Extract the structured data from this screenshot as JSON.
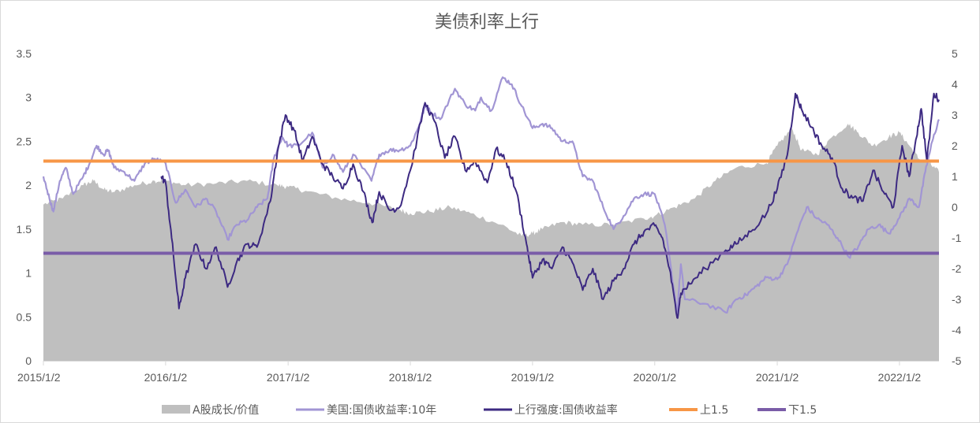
{
  "chart_data": {
    "type": "line",
    "title": "美债利率上行",
    "y_left": {
      "min": 0,
      "max": 3.5,
      "ticks": [
        "0",
        "0.5",
        "1",
        "1.5",
        "2",
        "2.5",
        "3",
        "3.5"
      ]
    },
    "y_right": {
      "min": -5,
      "max": 5,
      "ticks": [
        "-5",
        "-4",
        "-3",
        "-2",
        "-1",
        "0",
        "1",
        "2",
        "3",
        "4",
        "5"
      ]
    },
    "x_axis": {
      "start": "2015/1/2",
      "end": "2022/4/30",
      "ticks": [
        "2015/1/2",
        "2016/1/2",
        "2017/1/2",
        "2018/1/2",
        "2019/1/2",
        "2020/1/2",
        "2021/1/2",
        "2022/1/2"
      ]
    },
    "legend": {
      "position": "bottom",
      "items": [
        "A股成长/价值",
        "美国:国债收益率:10年",
        "上行强度:国债收益率",
        "上1.5",
        "下1.5"
      ]
    },
    "colors": {
      "area": "#bfbfbf",
      "us10y": "#a195d4",
      "strength": "#3d2a82",
      "upper": "#f79646",
      "lower": "#7a5ca8"
    },
    "series": [
      {
        "name": "A股成长/价值",
        "axis": "left",
        "type": "area",
        "points": [
          [
            "2015/1/2",
            1.78
          ],
          [
            "2015/3/1",
            1.85
          ],
          [
            "2015/5/1",
            2.0
          ],
          [
            "2015/6/1",
            2.05
          ],
          [
            "2015/7/1",
            1.95
          ],
          [
            "2015/8/1",
            1.92
          ],
          [
            "2015/10/1",
            2.0
          ],
          [
            "2015/12/1",
            2.05
          ],
          [
            "2016/1/2",
            2.05
          ],
          [
            "2016/3/1",
            2.0
          ],
          [
            "2016/6/1",
            2.02
          ],
          [
            "2016/9/1",
            2.05
          ],
          [
            "2016/12/1",
            2.0
          ],
          [
            "2017/1/2",
            1.98
          ],
          [
            "2017/3/1",
            1.93
          ],
          [
            "2017/6/1",
            1.85
          ],
          [
            "2017/9/1",
            1.8
          ],
          [
            "2017/12/1",
            1.72
          ],
          [
            "2018/1/2",
            1.68
          ],
          [
            "2018/3/1",
            1.7
          ],
          [
            "2018/5/1",
            1.75
          ],
          [
            "2018/7/1",
            1.68
          ],
          [
            "2018/10/1",
            1.55
          ],
          [
            "2018/12/1",
            1.42
          ],
          [
            "2019/1/2",
            1.45
          ],
          [
            "2019/2/1",
            1.5
          ],
          [
            "2019/4/1",
            1.58
          ],
          [
            "2019/6/1",
            1.55
          ],
          [
            "2019/9/1",
            1.55
          ],
          [
            "2019/12/1",
            1.62
          ],
          [
            "2020/1/2",
            1.65
          ],
          [
            "2020/3/1",
            1.75
          ],
          [
            "2020/5/1",
            1.85
          ],
          [
            "2020/7/1",
            2.05
          ],
          [
            "2020/9/1",
            2.2
          ],
          [
            "2020/12/1",
            2.25
          ],
          [
            "2021/1/2",
            2.45
          ],
          [
            "2021/2/15",
            2.65
          ],
          [
            "2021/3/15",
            2.4
          ],
          [
            "2021/5/1",
            2.35
          ],
          [
            "2021/6/1",
            2.5
          ],
          [
            "2021/8/1",
            2.7
          ],
          [
            "2021/9/1",
            2.6
          ],
          [
            "2021/10/15",
            2.45
          ],
          [
            "2021/12/1",
            2.55
          ],
          [
            "2022/1/2",
            2.6
          ],
          [
            "2022/2/1",
            2.45
          ],
          [
            "2022/3/1",
            2.3
          ],
          [
            "2022/4/1",
            2.25
          ],
          [
            "2022/4/30",
            2.15
          ]
        ]
      },
      {
        "name": "美国:国债收益率:10年",
        "axis": "left",
        "type": "line",
        "points": [
          [
            "2015/1/2",
            2.1
          ],
          [
            "2015/1/20",
            1.85
          ],
          [
            "2015/2/1",
            1.7
          ],
          [
            "2015/2/20",
            2.05
          ],
          [
            "2015/3/10",
            2.2
          ],
          [
            "2015/4/1",
            1.9
          ],
          [
            "2015/5/1",
            2.1
          ],
          [
            "2015/5/20",
            2.25
          ],
          [
            "2015/6/10",
            2.45
          ],
          [
            "2015/7/1",
            2.35
          ],
          [
            "2015/7/15",
            2.4
          ],
          [
            "2015/8/1",
            2.2
          ],
          [
            "2015/9/1",
            2.15
          ],
          [
            "2015/10/1",
            2.05
          ],
          [
            "2015/11/1",
            2.25
          ],
          [
            "2015/12/1",
            2.3
          ],
          [
            "2016/1/2",
            2.25
          ],
          [
            "2016/2/1",
            1.8
          ],
          [
            "2016/3/1",
            1.95
          ],
          [
            "2016/4/1",
            1.75
          ],
          [
            "2016/5/1",
            1.85
          ],
          [
            "2016/6/1",
            1.7
          ],
          [
            "2016/7/5",
            1.38
          ],
          [
            "2016/8/1",
            1.55
          ],
          [
            "2016/9/1",
            1.6
          ],
          [
            "2016/10/1",
            1.75
          ],
          [
            "2016/11/1",
            1.85
          ],
          [
            "2016/11/20",
            2.3
          ],
          [
            "2016/12/15",
            2.55
          ],
          [
            "2017/1/2",
            2.45
          ],
          [
            "2017/2/1",
            2.45
          ],
          [
            "2017/3/15",
            2.6
          ],
          [
            "2017/4/15",
            2.2
          ],
          [
            "2017/5/15",
            2.35
          ],
          [
            "2017/6/15",
            2.15
          ],
          [
            "2017/7/15",
            2.35
          ],
          [
            "2017/9/8",
            2.05
          ],
          [
            "2017/10/1",
            2.35
          ],
          [
            "2017/11/1",
            2.4
          ],
          [
            "2017/12/1",
            2.4
          ],
          [
            "2018/1/2",
            2.45
          ],
          [
            "2018/1/25",
            2.65
          ],
          [
            "2018/2/15",
            2.9
          ],
          [
            "2018/3/1",
            2.85
          ],
          [
            "2018/4/1",
            2.75
          ],
          [
            "2018/5/15",
            3.1
          ],
          [
            "2018/6/15",
            2.92
          ],
          [
            "2018/7/15",
            2.85
          ],
          [
            "2018/8/1",
            3.0
          ],
          [
            "2018/9/1",
            2.85
          ],
          [
            "2018/10/5",
            3.23
          ],
          [
            "2018/11/1",
            3.15
          ],
          [
            "2018/12/1",
            2.9
          ],
          [
            "2019/1/2",
            2.65
          ],
          [
            "2019/2/1",
            2.7
          ],
          [
            "2019/3/1",
            2.65
          ],
          [
            "2019/4/1",
            2.5
          ],
          [
            "2019/5/1",
            2.5
          ],
          [
            "2019/6/1",
            2.1
          ],
          [
            "2019/7/1",
            2.05
          ],
          [
            "2019/8/1",
            1.75
          ],
          [
            "2019/9/1",
            1.5
          ],
          [
            "2019/10/1",
            1.65
          ],
          [
            "2019/11/1",
            1.85
          ],
          [
            "2019/12/1",
            1.9
          ],
          [
            "2020/1/2",
            1.9
          ],
          [
            "2020/2/1",
            1.55
          ],
          [
            "2020/3/9",
            0.55
          ],
          [
            "2020/3/20",
            1.1
          ],
          [
            "2020/4/1",
            0.7
          ],
          [
            "2020/6/1",
            0.65
          ],
          [
            "2020/8/1",
            0.55
          ],
          [
            "2020/9/1",
            0.7
          ],
          [
            "2020/10/1",
            0.75
          ],
          [
            "2020/11/1",
            0.85
          ],
          [
            "2020/12/1",
            0.95
          ],
          [
            "2021/1/2",
            0.93
          ],
          [
            "2021/2/1",
            1.1
          ],
          [
            "2021/3/1",
            1.45
          ],
          [
            "2021/3/31",
            1.75
          ],
          [
            "2021/5/1",
            1.62
          ],
          [
            "2021/6/1",
            1.55
          ],
          [
            "2021/7/1",
            1.4
          ],
          [
            "2021/8/4",
            1.18
          ],
          [
            "2021/9/1",
            1.3
          ],
          [
            "2021/10/1",
            1.5
          ],
          [
            "2021/11/1",
            1.55
          ],
          [
            "2021/12/1",
            1.45
          ],
          [
            "2022/1/2",
            1.63
          ],
          [
            "2022/2/1",
            1.85
          ],
          [
            "2022/3/1",
            1.75
          ],
          [
            "2022/3/20",
            2.15
          ],
          [
            "2022/4/10",
            2.5
          ],
          [
            "2022/4/30",
            2.75
          ]
        ]
      },
      {
        "name": "上行强度:国债收益率",
        "axis": "right",
        "type": "line",
        "points": [
          [
            "2015/1/2",
            null
          ],
          [
            "2015/12/20",
            1.0
          ],
          [
            "2016/1/2",
            0.8
          ],
          [
            "2016/1/20",
            -1.0
          ],
          [
            "2016/2/11",
            -3.3
          ],
          [
            "2016/3/1",
            -2.3
          ],
          [
            "2016/4/1",
            -1.2
          ],
          [
            "2016/5/1",
            -2.0
          ],
          [
            "2016/6/1",
            -1.3
          ],
          [
            "2016/7/5",
            -2.6
          ],
          [
            "2016/8/1",
            -1.8
          ],
          [
            "2016/9/1",
            -1.2
          ],
          [
            "2016/10/1",
            -1.3
          ],
          [
            "2016/11/10",
            0.2
          ],
          [
            "2016/12/1",
            1.8
          ],
          [
            "2016/12/25",
            3.0
          ],
          [
            "2017/1/20",
            2.5
          ],
          [
            "2017/2/15",
            1.5
          ],
          [
            "2017/3/15",
            2.3
          ],
          [
            "2017/4/15",
            1.4
          ],
          [
            "2017/5/15",
            1.0
          ],
          [
            "2017/6/15",
            0.6
          ],
          [
            "2017/7/15",
            1.4
          ],
          [
            "2017/8/15",
            0.5
          ],
          [
            "2017/9/10",
            -0.5
          ],
          [
            "2017/10/1",
            0.5
          ],
          [
            "2017/11/1",
            -0.1
          ],
          [
            "2017/12/1",
            0.0
          ],
          [
            "2018/1/2",
            1.2
          ],
          [
            "2018/2/15",
            3.4
          ],
          [
            "2018/3/15",
            2.8
          ],
          [
            "2018/4/15",
            1.6
          ],
          [
            "2018/5/15",
            2.3
          ],
          [
            "2018/6/15",
            1.2
          ],
          [
            "2018/7/15",
            1.5
          ],
          [
            "2018/8/20",
            0.8
          ],
          [
            "2018/9/15",
            1.9
          ],
          [
            "2018/10/15",
            1.5
          ],
          [
            "2018/11/15",
            0.5
          ],
          [
            "2018/12/15",
            -1.2
          ],
          [
            "2019/1/2",
            -2.3
          ],
          [
            "2019/2/1",
            -1.7
          ],
          [
            "2019/3/1",
            -2.0
          ],
          [
            "2019/4/1",
            -1.3
          ],
          [
            "2019/5/1",
            -1.8
          ],
          [
            "2019/6/1",
            -2.7
          ],
          [
            "2019/7/1",
            -2.0
          ],
          [
            "2019/8/1",
            -3.0
          ],
          [
            "2019/9/1",
            -2.4
          ],
          [
            "2019/10/1",
            -2.0
          ],
          [
            "2019/11/1",
            -1.2
          ],
          [
            "2019/12/1",
            -0.8
          ],
          [
            "2020/1/2",
            -0.6
          ],
          [
            "2020/1/25",
            -1.0
          ],
          [
            "2020/2/15",
            -2.0
          ],
          [
            "2020/3/9",
            -3.6
          ],
          [
            "2020/3/20",
            -2.8
          ],
          [
            "2020/4/15",
            -2.5
          ],
          [
            "2020/6/1",
            -2.0
          ],
          [
            "2020/8/1",
            -1.4
          ],
          [
            "2020/9/1",
            -1.2
          ],
          [
            "2020/10/15",
            -0.8
          ],
          [
            "2020/12/1",
            -0.2
          ],
          [
            "2021/1/2",
            0.6
          ],
          [
            "2021/2/1",
            1.7
          ],
          [
            "2021/2/25",
            3.7
          ],
          [
            "2021/3/15",
            3.2
          ],
          [
            "2021/4/15",
            2.6
          ],
          [
            "2021/5/15",
            2.0
          ],
          [
            "2021/6/15",
            1.6
          ],
          [
            "2021/7/15",
            0.6
          ],
          [
            "2021/8/15",
            0.3
          ],
          [
            "2021/9/15",
            0.2
          ],
          [
            "2021/10/15",
            1.2
          ],
          [
            "2021/11/15",
            0.5
          ],
          [
            "2021/12/15",
            0.0
          ],
          [
            "2022/1/10",
            2.0
          ],
          [
            "2022/1/31",
            1.0
          ],
          [
            "2022/2/20",
            2.2
          ],
          [
            "2022/3/8",
            3.2
          ],
          [
            "2022/3/25",
            1.5
          ],
          [
            "2022/4/15",
            3.7
          ],
          [
            "2022/4/30",
            3.5
          ]
        ]
      },
      {
        "name": "上1.5",
        "axis": "right",
        "type": "hline",
        "value": 1.5
      },
      {
        "name": "下1.5",
        "axis": "right",
        "type": "hline",
        "value": -1.5
      }
    ]
  }
}
